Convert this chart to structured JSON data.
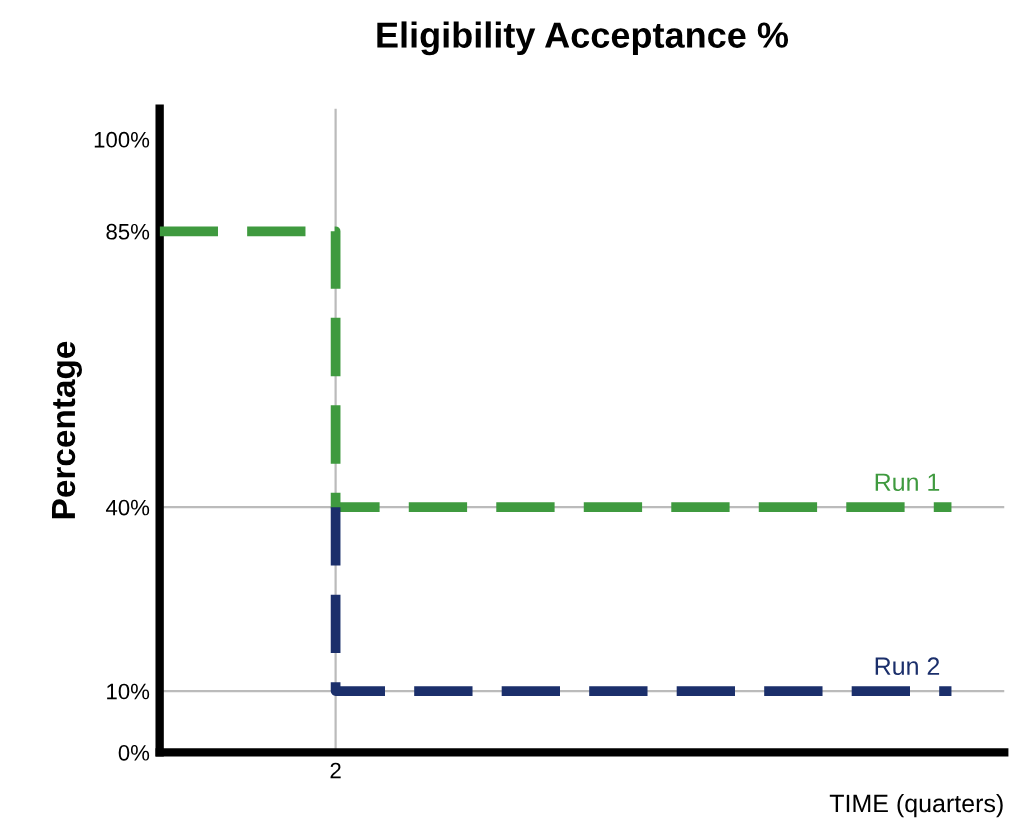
{
  "chart_data": {
    "type": "step",
    "title": "Eligibility Acceptance %",
    "xlabel": "TIME (quarters)",
    "ylabel": "Percentage",
    "categories": [
      null,
      null,
      "2",
      null,
      null,
      null,
      null,
      null,
      null,
      null
    ],
    "series": [
      {
        "name": "Run 1",
        "color": "#3f9a3f",
        "values": [
          85,
          85,
          85,
          40,
          40,
          40,
          40,
          40,
          40,
          40
        ]
      },
      {
        "name": "Run 2",
        "color": "#1b2f6b",
        "values": [
          null,
          null,
          40,
          10,
          10,
          10,
          10,
          10,
          10,
          10
        ]
      }
    ],
    "ylim": [
      0,
      105
    ],
    "yticks": [
      {
        "value": 0,
        "label": "0%"
      },
      {
        "value": 10,
        "label": "10%"
      },
      {
        "value": 40,
        "label": "40%"
      },
      {
        "value": 85,
        "label": "85%"
      },
      {
        "value": 100,
        "label": "100%"
      }
    ],
    "ref_lines": [
      {
        "axis": "y",
        "value": 40,
        "color": "#bbbbbb"
      },
      {
        "axis": "y",
        "value": 10,
        "color": "#bbbbbb"
      },
      {
        "axis": "x",
        "value": "2",
        "color": "#bbbbbb"
      }
    ],
    "line_style": "dashed",
    "grid": false,
    "legend": false
  }
}
